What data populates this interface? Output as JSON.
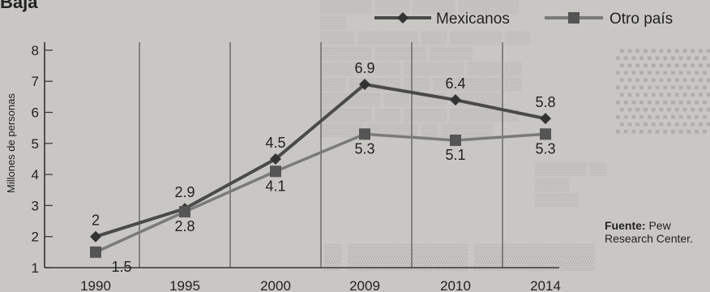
{
  "header_fragment": "Baja",
  "chart_data": {
    "type": "line",
    "x": [
      "1990",
      "1995",
      "2000",
      "2009",
      "2010",
      "2014"
    ],
    "ylabel": "Millones de personas",
    "yticks": [
      "1",
      "2",
      "3",
      "4",
      "5",
      "6",
      "7",
      "8"
    ],
    "ylim": [
      1,
      8
    ],
    "grid": "vertical",
    "legend_position": "top-right",
    "series": [
      {
        "name": "Mexicanos",
        "values": [
          2,
          2.9,
          4.5,
          6.9,
          6.4,
          5.8
        ],
        "labels": [
          "2",
          "2.9",
          "4.5",
          "6.9",
          "6.4",
          "5.8"
        ],
        "marker": "diamond",
        "color": "#4a4a4a"
      },
      {
        "name": "Otro país",
        "values": [
          1.5,
          2.8,
          4.1,
          5.3,
          5.1,
          5.3
        ],
        "labels": [
          "1.5",
          "2.8",
          "4.1",
          "5.3",
          "5.1",
          "5.3"
        ],
        "marker": "square",
        "color": "#7a7a7a"
      }
    ]
  },
  "source": {
    "label": "Fuente:",
    "text": "Pew Research Center."
  }
}
